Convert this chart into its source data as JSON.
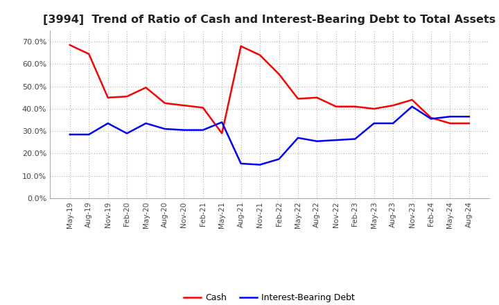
{
  "title": "[3994]  Trend of Ratio of Cash and Interest-Bearing Debt to Total Assets",
  "x_labels": [
    "May-19",
    "Aug-19",
    "Nov-19",
    "Feb-20",
    "May-20",
    "Aug-20",
    "Nov-20",
    "Feb-21",
    "May-21",
    "Aug-21",
    "Nov-21",
    "Feb-22",
    "May-22",
    "Aug-22",
    "Nov-22",
    "Feb-23",
    "May-23",
    "Aug-23",
    "Nov-23",
    "Feb-24",
    "May-24",
    "Aug-24"
  ],
  "cash": [
    0.685,
    0.645,
    0.45,
    0.455,
    0.495,
    0.425,
    0.415,
    0.405,
    0.29,
    0.68,
    0.64,
    0.555,
    0.445,
    0.45,
    0.41,
    0.41,
    0.4,
    0.415,
    0.44,
    0.36,
    0.335,
    0.335
  ],
  "debt": [
    0.285,
    0.285,
    0.335,
    0.29,
    0.335,
    0.31,
    0.305,
    0.305,
    0.34,
    0.155,
    0.15,
    0.175,
    0.27,
    0.255,
    0.26,
    0.265,
    0.335,
    0.335,
    0.41,
    0.355,
    0.365,
    0.365
  ],
  "cash_color": "#ff0000",
  "debt_color": "#0000ff",
  "ylim": [
    0.0,
    0.75
  ],
  "yticks": [
    0.0,
    0.1,
    0.2,
    0.3,
    0.4,
    0.5,
    0.6,
    0.7
  ],
  "background_color": "#ffffff",
  "grid_color": "#aaaaaa",
  "title_fontsize": 11.5,
  "legend_cash": "Cash",
  "legend_debt": "Interest-Bearing Debt",
  "line_width": 1.8
}
